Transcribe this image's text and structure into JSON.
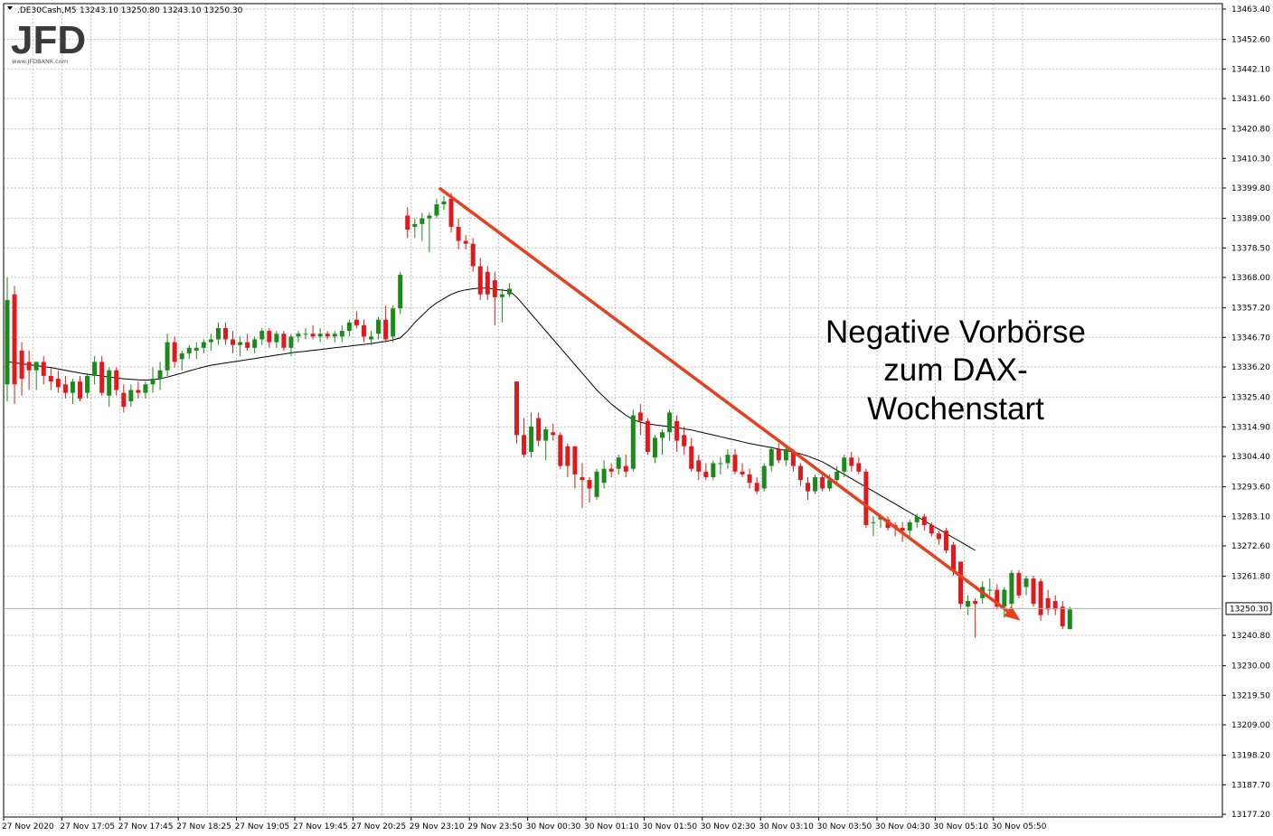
{
  "header": {
    "symbol": ".DE30Cash,M5",
    "ohlc": "13243.10 13250.80 13243.10 13250.30"
  },
  "logo": {
    "main": "JFD",
    "sub": "www.JFDBANK.com"
  },
  "annotation": {
    "lines": [
      "Negative Vorbörse",
      "zum DAX-",
      "Wochenstart"
    ]
  },
  "current_price_label": "13250.30",
  "colors": {
    "bull": "#1b8a1b",
    "bear": "#e0191c",
    "trend": "#e8401f",
    "ma": "#000000",
    "grid": "#c0c0c0"
  },
  "chart_data": {
    "type": "candlestick",
    "title": "",
    "xlabel": "",
    "ylabel": "",
    "grid": true,
    "ylim": [
      13177.2,
      13463.4
    ],
    "y_ticks": [
      "13463.40",
      "13452.60",
      "13442.10",
      "13431.60",
      "13420.80",
      "13410.30",
      "13399.80",
      "13389.00",
      "13378.50",
      "13368.00",
      "13357.20",
      "13346.70",
      "13336.20",
      "13325.40",
      "13314.90",
      "13304.40",
      "13293.60",
      "13283.10",
      "13272.60",
      "13261.80",
      "13240.80",
      "13230.00",
      "13219.50",
      "13209.00",
      "13198.20",
      "13187.70",
      "13177.20"
    ],
    "x_tick_labels": [
      "27 Nov 2020",
      "27 Nov 17:05",
      "27 Nov 17:45",
      "27 Nov 18:25",
      "27 Nov 19:05",
      "27 Nov 19:45",
      "27 Nov 20:25",
      "29 Nov 23:10",
      "29 Nov 23:50",
      "30 Nov 00:30",
      "30 Nov 01:10",
      "30 Nov 01:50",
      "30 Nov 02:30",
      "30 Nov 03:10",
      "30 Nov 03:50",
      "30 Nov 04:30",
      "30 Nov 05:10",
      "30 Nov 05:50"
    ],
    "candles": [
      {
        "o": 13330,
        "h": 13368,
        "l": 13324,
        "c": 13360
      },
      {
        "o": 13362,
        "h": 13365,
        "l": 13323,
        "c": 13330
      },
      {
        "o": 13342,
        "h": 13345,
        "l": 13326,
        "c": 13332
      },
      {
        "o": 13338,
        "h": 13342,
        "l": 13328,
        "c": 13335
      },
      {
        "o": 13335,
        "h": 13338,
        "l": 13328,
        "c": 13338
      },
      {
        "o": 13338,
        "h": 13340,
        "l": 13330,
        "c": 13333
      },
      {
        "o": 13333,
        "h": 13336,
        "l": 13328,
        "c": 13331
      },
      {
        "o": 13332,
        "h": 13335,
        "l": 13327,
        "c": 13329
      },
      {
        "o": 13330,
        "h": 13333,
        "l": 13325,
        "c": 13327
      },
      {
        "o": 13327,
        "h": 13332,
        "l": 13323,
        "c": 13331
      },
      {
        "o": 13331,
        "h": 13333,
        "l": 13324,
        "c": 13325
      },
      {
        "o": 13327,
        "h": 13334,
        "l": 13325,
        "c": 13333
      },
      {
        "o": 13333,
        "h": 13340,
        "l": 13330,
        "c": 13338
      },
      {
        "o": 13338,
        "h": 13340,
        "l": 13326,
        "c": 13327
      },
      {
        "o": 13326,
        "h": 13336,
        "l": 13322,
        "c": 13335
      },
      {
        "o": 13335,
        "h": 13336,
        "l": 13326,
        "c": 13328
      },
      {
        "o": 13327,
        "h": 13330,
        "l": 13320,
        "c": 13322
      },
      {
        "o": 13324,
        "h": 13330,
        "l": 13322,
        "c": 13328
      },
      {
        "o": 13328,
        "h": 13331,
        "l": 13325,
        "c": 13327
      },
      {
        "o": 13327,
        "h": 13331,
        "l": 13325,
        "c": 13330
      },
      {
        "o": 13330,
        "h": 13336,
        "l": 13327,
        "c": 13332
      },
      {
        "o": 13332,
        "h": 13338,
        "l": 13328,
        "c": 13335
      },
      {
        "o": 13335,
        "h": 13348,
        "l": 13333,
        "c": 13345
      },
      {
        "o": 13345,
        "h": 13347,
        "l": 13336,
        "c": 13338
      },
      {
        "o": 13339,
        "h": 13342,
        "l": 13335,
        "c": 13341
      },
      {
        "o": 13341,
        "h": 13344,
        "l": 13339,
        "c": 13343
      },
      {
        "o": 13342,
        "h": 13345,
        "l": 13339,
        "c": 13343
      },
      {
        "o": 13343,
        "h": 13346,
        "l": 13341,
        "c": 13345
      },
      {
        "o": 13345,
        "h": 13348,
        "l": 13342,
        "c": 13346
      },
      {
        "o": 13346,
        "h": 13352,
        "l": 13344,
        "c": 13350
      },
      {
        "o": 13350,
        "h": 13352,
        "l": 13344,
        "c": 13346
      },
      {
        "o": 13346,
        "h": 13349,
        "l": 13341,
        "c": 13344
      },
      {
        "o": 13344,
        "h": 13347,
        "l": 13340,
        "c": 13345
      },
      {
        "o": 13345,
        "h": 13348,
        "l": 13342,
        "c": 13343
      },
      {
        "o": 13343,
        "h": 13347,
        "l": 13341,
        "c": 13346
      },
      {
        "o": 13346,
        "h": 13350,
        "l": 13344,
        "c": 13349
      },
      {
        "o": 13349,
        "h": 13350,
        "l": 13343,
        "c": 13345
      },
      {
        "o": 13345,
        "h": 13349,
        "l": 13343,
        "c": 13348
      },
      {
        "o": 13348,
        "h": 13349,
        "l": 13342,
        "c": 13343
      },
      {
        "o": 13343,
        "h": 13348,
        "l": 13340,
        "c": 13347
      },
      {
        "o": 13347,
        "h": 13349,
        "l": 13345,
        "c": 13348
      },
      {
        "o": 13348,
        "h": 13350,
        "l": 13346,
        "c": 13348
      },
      {
        "o": 13348,
        "h": 13351,
        "l": 13346,
        "c": 13347
      },
      {
        "o": 13347,
        "h": 13350,
        "l": 13345,
        "c": 13348
      },
      {
        "o": 13348,
        "h": 13349,
        "l": 13346,
        "c": 13347
      },
      {
        "o": 13347,
        "h": 13349,
        "l": 13345,
        "c": 13348
      },
      {
        "o": 13347,
        "h": 13351,
        "l": 13345,
        "c": 13349
      },
      {
        "o": 13349,
        "h": 13353,
        "l": 13347,
        "c": 13352
      },
      {
        "o": 13353,
        "h": 13356,
        "l": 13350,
        "c": 13351
      },
      {
        "o": 13351,
        "h": 13353,
        "l": 13345,
        "c": 13347
      },
      {
        "o": 13346,
        "h": 13349,
        "l": 13344,
        "c": 13347
      },
      {
        "o": 13348,
        "h": 13354,
        "l": 13346,
        "c": 13353
      },
      {
        "o": 13353,
        "h": 13358,
        "l": 13345,
        "c": 13346
      },
      {
        "o": 13347,
        "h": 13358,
        "l": 13345,
        "c": 13357
      },
      {
        "o": 13357,
        "h": 13370,
        "l": 13355,
        "c": 13369
      },
      {
        "o": 13390,
        "h": 13393,
        "l": 13382,
        "c": 13385
      },
      {
        "o": 13386,
        "h": 13389,
        "l": 13382,
        "c": 13387
      },
      {
        "o": 13387,
        "h": 13391,
        "l": 13381,
        "c": 13389
      },
      {
        "o": 13389,
        "h": 13391,
        "l": 13377,
        "c": 13390
      },
      {
        "o": 13390,
        "h": 13396,
        "l": 13389,
        "c": 13394
      },
      {
        "o": 13394,
        "h": 13397,
        "l": 13392,
        "c": 13395
      },
      {
        "o": 13396,
        "h": 13398,
        "l": 13384,
        "c": 13386
      },
      {
        "o": 13386,
        "h": 13389,
        "l": 13378,
        "c": 13381
      },
      {
        "o": 13381,
        "h": 13383,
        "l": 13378,
        "c": 13380
      },
      {
        "o": 13380,
        "h": 13382,
        "l": 13370,
        "c": 13372
      },
      {
        "o": 13372,
        "h": 13375,
        "l": 13360,
        "c": 13362
      },
      {
        "o": 13370,
        "h": 13372,
        "l": 13360,
        "c": 13362
      },
      {
        "o": 13367,
        "h": 13370,
        "l": 13351,
        "c": 13361
      },
      {
        "o": 13361,
        "h": 13364,
        "l": 13352,
        "c": 13362
      },
      {
        "o": 13362,
        "h": 13366,
        "l": 13361,
        "c": 13364
      },
      {
        "o": 13331,
        "h": 13331,
        "l": 13309,
        "c": 13312
      },
      {
        "o": 13312,
        "h": 13318,
        "l": 13304,
        "c": 13305
      },
      {
        "o": 13306,
        "h": 13320,
        "l": 13304,
        "c": 13315
      },
      {
        "o": 13318,
        "h": 13320,
        "l": 13308,
        "c": 13310
      },
      {
        "o": 13310,
        "h": 13315,
        "l": 13303,
        "c": 13314
      },
      {
        "o": 13313,
        "h": 13316,
        "l": 13310,
        "c": 13312
      },
      {
        "o": 13312,
        "h": 13313,
        "l": 13300,
        "c": 13301
      },
      {
        "o": 13308,
        "h": 13309,
        "l": 13297,
        "c": 13301
      },
      {
        "o": 13308,
        "h": 13308,
        "l": 13293,
        "c": 13298
      },
      {
        "o": 13297,
        "h": 13302,
        "l": 13286,
        "c": 13296
      },
      {
        "o": 13296,
        "h": 13297,
        "l": 13288,
        "c": 13293
      },
      {
        "o": 13290,
        "h": 13300,
        "l": 13289,
        "c": 13299
      },
      {
        "o": 13295,
        "h": 13303,
        "l": 13293,
        "c": 13300
      },
      {
        "o": 13300,
        "h": 13302,
        "l": 13297,
        "c": 13299
      },
      {
        "o": 13300,
        "h": 13305,
        "l": 13298,
        "c": 13304
      },
      {
        "o": 13301,
        "h": 13305,
        "l": 13297,
        "c": 13299
      },
      {
        "o": 13300,
        "h": 13321,
        "l": 13299,
        "c": 13319
      },
      {
        "o": 13320,
        "h": 13323,
        "l": 13312,
        "c": 13317
      },
      {
        "o": 13317,
        "h": 13318,
        "l": 13305,
        "c": 13306
      },
      {
        "o": 13304,
        "h": 13312,
        "l": 13302,
        "c": 13311
      },
      {
        "o": 13311,
        "h": 13314,
        "l": 13305,
        "c": 13313
      },
      {
        "o": 13313,
        "h": 13321,
        "l": 13310,
        "c": 13320
      },
      {
        "o": 13317,
        "h": 13319,
        "l": 13306,
        "c": 13310
      },
      {
        "o": 13312,
        "h": 13315,
        "l": 13305,
        "c": 13308
      },
      {
        "o": 13308,
        "h": 13311,
        "l": 13299,
        "c": 13300
      },
      {
        "o": 13303,
        "h": 13305,
        "l": 13296,
        "c": 13299
      },
      {
        "o": 13299,
        "h": 13302,
        "l": 13296,
        "c": 13297
      },
      {
        "o": 13297,
        "h": 13303,
        "l": 13296,
        "c": 13302
      },
      {
        "o": 13302,
        "h": 13304,
        "l": 13298,
        "c": 13302
      },
      {
        "o": 13302,
        "h": 13307,
        "l": 13300,
        "c": 13305
      },
      {
        "o": 13305,
        "h": 13307,
        "l": 13298,
        "c": 13299
      },
      {
        "o": 13299,
        "h": 13302,
        "l": 13297,
        "c": 13298
      },
      {
        "o": 13298,
        "h": 13300,
        "l": 13293,
        "c": 13295
      },
      {
        "o": 13295,
        "h": 13297,
        "l": 13291,
        "c": 13292
      },
      {
        "o": 13293,
        "h": 13302,
        "l": 13292,
        "c": 13301
      },
      {
        "o": 13301,
        "h": 13308,
        "l": 13299,
        "c": 13307
      },
      {
        "o": 13307,
        "h": 13309,
        "l": 13302,
        "c": 13303
      },
      {
        "o": 13303,
        "h": 13308,
        "l": 13301,
        "c": 13307
      },
      {
        "o": 13306,
        "h": 13307,
        "l": 13299,
        "c": 13301
      },
      {
        "o": 13301,
        "h": 13302,
        "l": 13294,
        "c": 13296
      },
      {
        "o": 13295,
        "h": 13297,
        "l": 13289,
        "c": 13292
      },
      {
        "o": 13292,
        "h": 13298,
        "l": 13291,
        "c": 13297
      },
      {
        "o": 13297,
        "h": 13299,
        "l": 13292,
        "c": 13293
      },
      {
        "o": 13293,
        "h": 13298,
        "l": 13292,
        "c": 13296
      },
      {
        "o": 13296,
        "h": 13301,
        "l": 13294,
        "c": 13299
      },
      {
        "o": 13299,
        "h": 13305,
        "l": 13297,
        "c": 13304
      },
      {
        "o": 13304,
        "h": 13306,
        "l": 13299,
        "c": 13301
      },
      {
        "o": 13302,
        "h": 13304,
        "l": 13298,
        "c": 13299
      },
      {
        "o": 13299,
        "h": 13300,
        "l": 13279,
        "c": 13280
      },
      {
        "o": 13281,
        "h": 13283,
        "l": 13276,
        "c": 13281
      },
      {
        "o": 13282,
        "h": 13284,
        "l": 13279,
        "c": 13283
      },
      {
        "o": 13282,
        "h": 13283,
        "l": 13278,
        "c": 13279
      },
      {
        "o": 13280,
        "h": 13281,
        "l": 13276,
        "c": 13279
      },
      {
        "o": 13279,
        "h": 13281,
        "l": 13274,
        "c": 13278
      },
      {
        "o": 13278,
        "h": 13282,
        "l": 13276,
        "c": 13281
      },
      {
        "o": 13281,
        "h": 13284,
        "l": 13279,
        "c": 13283
      },
      {
        "o": 13283,
        "h": 13284,
        "l": 13278,
        "c": 13280
      },
      {
        "o": 13280,
        "h": 13281,
        "l": 13276,
        "c": 13277
      },
      {
        "o": 13277,
        "h": 13278,
        "l": 13273,
        "c": 13275
      },
      {
        "o": 13278,
        "h": 13279,
        "l": 13270,
        "c": 13271
      },
      {
        "o": 13273,
        "h": 13274,
        "l": 13262,
        "c": 13264
      },
      {
        "o": 13267,
        "h": 13267,
        "l": 13250,
        "c": 13252
      },
      {
        "o": 13251,
        "h": 13255,
        "l": 13248,
        "c": 13253
      },
      {
        "o": 13253,
        "h": 13254,
        "l": 13240,
        "c": 13252
      },
      {
        "o": 13254,
        "h": 13260,
        "l": 13252,
        "c": 13258
      },
      {
        "o": 13257,
        "h": 13261,
        "l": 13255,
        "c": 13257
      },
      {
        "o": 13257,
        "h": 13259,
        "l": 13250,
        "c": 13251
      },
      {
        "o": 13251,
        "h": 13258,
        "l": 13247,
        "c": 13257
      },
      {
        "o": 13252,
        "h": 13264,
        "l": 13250,
        "c": 13263
      },
      {
        "o": 13263,
        "h": 13264,
        "l": 13254,
        "c": 13255
      },
      {
        "o": 13258,
        "h": 13262,
        "l": 13255,
        "c": 13261
      },
      {
        "o": 13261,
        "h": 13262,
        "l": 13251,
        "c": 13252
      },
      {
        "o": 13260,
        "h": 13261,
        "l": 13246,
        "c": 13248
      },
      {
        "o": 13254,
        "h": 13257,
        "l": 13248,
        "c": 13250
      },
      {
        "o": 13253,
        "h": 13255,
        "l": 13248,
        "c": 13250
      },
      {
        "o": 13251,
        "h": 13253,
        "l": 13243,
        "c": 13244
      },
      {
        "o": 13243,
        "h": 13251,
        "l": 13243,
        "c": 13250
      }
    ],
    "moving_average": [
      13338,
      13337.7,
      13337.3,
      13337,
      13336.7,
      13336.3,
      13336,
      13335.5,
      13335,
      13334.5,
      13334,
      13333.6,
      13333.3,
      13333,
      13332.6,
      13332.3,
      13332,
      13331.8,
      13331.6,
      13331.5,
      13331.7,
      13332,
      13332.6,
      13333.3,
      13334,
      13334.8,
      13335.5,
      13336.2,
      13336.8,
      13337.2,
      13337.6,
      13338,
      13338.4,
      13338.8,
      13339.2,
      13339.6,
      13340,
      13340.4,
      13340.8,
      13341.2,
      13341.5,
      13341.8,
      13342.1,
      13342.4,
      13342.7,
      13343,
      13343.3,
      13343.6,
      13343.9,
      13344.2,
      13344.5,
      13344.9,
      13345.3,
      13345.8,
      13346.5,
      13349,
      13352,
      13354.5,
      13357,
      13359,
      13360.5,
      13362,
      13363,
      13363.6,
      13364,
      13364.2,
      13364.2,
      13363.8,
      13363.5,
      13363.2,
      13361,
      13358,
      13355,
      13352,
      13349,
      13346,
      13343,
      13340,
      13337,
      13334,
      13331,
      13328,
      13325.5,
      13323,
      13321,
      13319,
      13317.5,
      13316.5,
      13316,
      13315.6,
      13315.3,
      13315,
      13314.6,
      13314.2,
      13313.8,
      13313.2,
      13312.6,
      13312,
      13311.4,
      13310.8,
      13310.2,
      13309.6,
      13309,
      13308.5,
      13308,
      13307.5,
      13307,
      13306.5,
      13306,
      13305.3,
      13304.5,
      13303.5,
      13302.5,
      13301,
      13299.5,
      13298,
      13296.5,
      13295,
      13293.5,
      13292,
      13290.5,
      13289,
      13287.5,
      13286,
      13284.5,
      13283,
      13281.5,
      13280,
      13278.5,
      13277,
      13275.5,
      13274,
      13272.5,
      13271
    ],
    "trendline": {
      "start": {
        "x": "29 Nov 23:10",
        "y": 13399.8
      },
      "end": {
        "x": "30 Nov 05:50",
        "y": 13246.0
      }
    },
    "current_price": 13250.3
  }
}
